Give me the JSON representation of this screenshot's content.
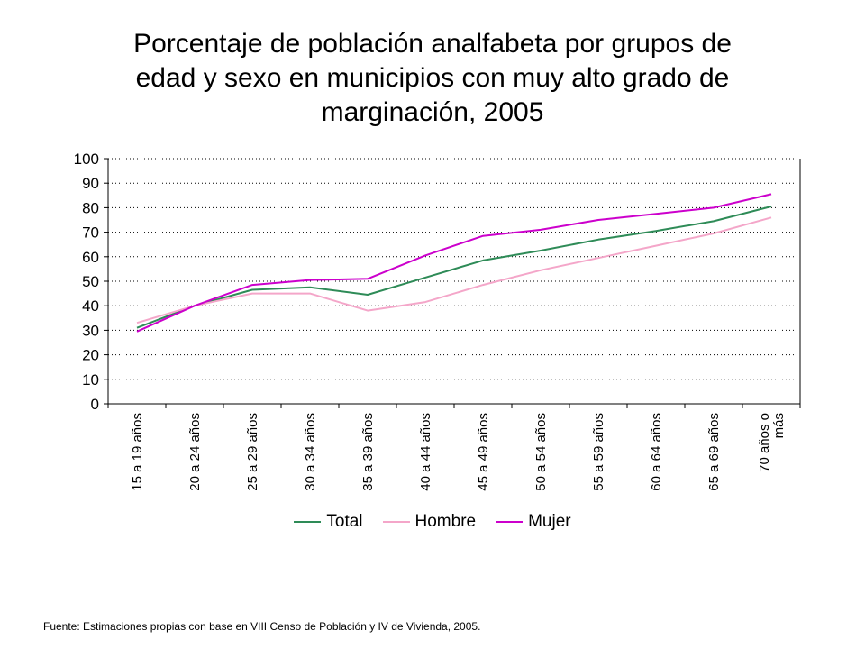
{
  "title_lines": [
    "Porcentaje de población analfabeta por grupos de",
    "edad y sexo en municipios con muy alto grado de",
    "marginación, 2005"
  ],
  "source": "Fuente: Estimaciones propias con base en VIII Censo de Población y IV de Vivienda, 2005.",
  "chart_data": {
    "type": "line",
    "title": "Porcentaje de población analfabeta por grupos de edad y sexo en municipios con muy alto grado de marginación, 2005",
    "xlabel": "",
    "ylabel": "",
    "ylim": [
      0,
      100
    ],
    "yticks": [
      0,
      10,
      20,
      30,
      40,
      50,
      60,
      70,
      80,
      90,
      100
    ],
    "grid": "horizontal dotted",
    "legend_position": "bottom",
    "categories": [
      "15 a 19 años",
      "20 a 24 años",
      "25 a 29 años",
      "30 a 34 años",
      "35 a 39 años",
      "40 a 44 años",
      "45 a 49 años",
      "50 a 54 años",
      "55 a 59 años",
      "60 a 64 años",
      "65 a 69 años",
      "70 años o más"
    ],
    "series": [
      {
        "name": "Total",
        "color": "#2e8b57",
        "values": [
          31,
          40,
          46.5,
          47.5,
          44.5,
          51.5,
          58.5,
          62.5,
          67,
          70.5,
          74.5,
          80.5
        ]
      },
      {
        "name": "Hombre",
        "color": "#f4a6c9",
        "values": [
          33,
          40,
          45,
          45,
          38,
          41.5,
          48.5,
          54.5,
          59.5,
          64.5,
          69.5,
          76
        ]
      },
      {
        "name": "Mujer",
        "color": "#cc00cc",
        "values": [
          29.5,
          40,
          48.5,
          50.5,
          51,
          60.5,
          68.5,
          71,
          75,
          77.5,
          80,
          85.5
        ]
      }
    ]
  }
}
